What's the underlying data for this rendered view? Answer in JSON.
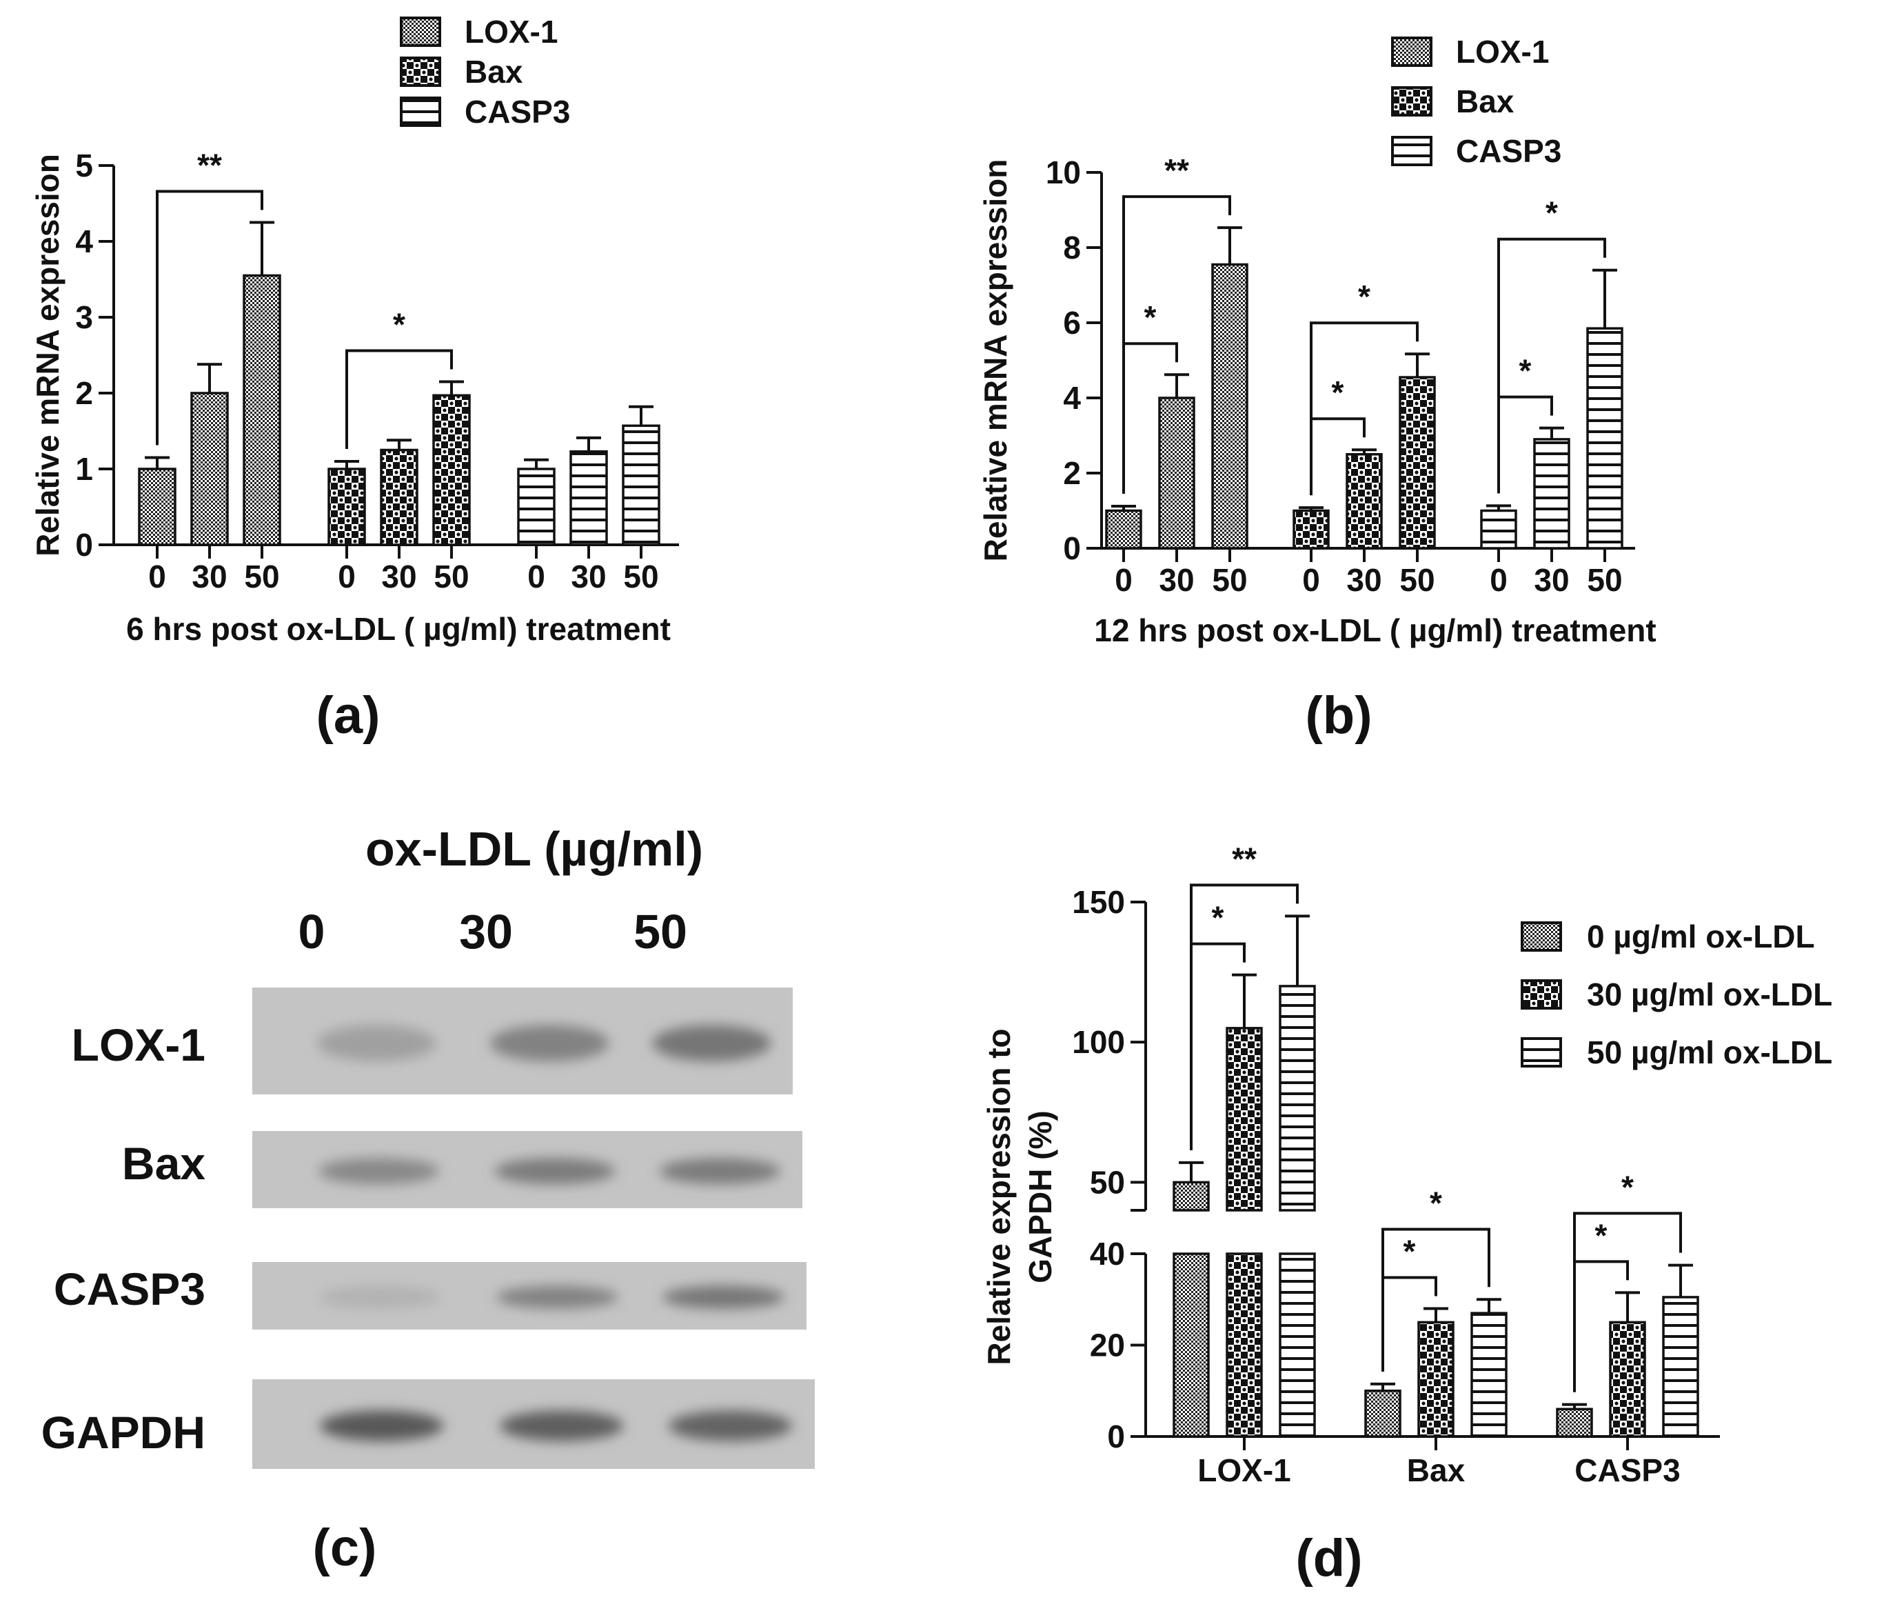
{
  "chart_data": [
    {
      "id": "a",
      "type": "bar",
      "panel_label": "(a)",
      "xlabel": "6 hrs post ox-LDL ( µg/ml) treatment",
      "ylabel": "Relative mRNA expression",
      "ylim": [
        0,
        5
      ],
      "yticks": [
        "0",
        "1",
        "2",
        "3",
        "4",
        "5"
      ],
      "dose_labels": [
        "0",
        "30",
        "50"
      ],
      "legend": [
        "LOX-1",
        "Bax",
        "CASP3"
      ],
      "series": [
        {
          "name": "LOX-1",
          "values": [
            1.0,
            2.0,
            3.55
          ],
          "errors": [
            0.15,
            0.38,
            0.7
          ]
        },
        {
          "name": "Bax",
          "values": [
            1.0,
            1.25,
            1.97
          ],
          "errors": [
            0.1,
            0.13,
            0.18
          ]
        },
        {
          "name": "CASP3",
          "values": [
            1.0,
            1.23,
            1.57
          ],
          "errors": [
            0.12,
            0.18,
            0.25
          ]
        }
      ],
      "significance": [
        {
          "series": "LOX-1",
          "from": "0",
          "to": "50",
          "label": "**"
        },
        {
          "series": "Bax",
          "from": "0",
          "to": "50",
          "label": "*"
        }
      ]
    },
    {
      "id": "b",
      "type": "bar",
      "panel_label": "(b)",
      "xlabel": "12 hrs post ox-LDL ( µg/ml) treatment",
      "ylabel": "Relative mRNA expression",
      "ylim": [
        0,
        10
      ],
      "yticks": [
        "0",
        "2",
        "4",
        "6",
        "8",
        "10"
      ],
      "dose_labels": [
        "0",
        "30",
        "50"
      ],
      "legend": [
        "LOX-1",
        "Bax",
        "CASP3"
      ],
      "series": [
        {
          "name": "LOX-1",
          "values": [
            1.0,
            4.0,
            7.55
          ],
          "errors": [
            0.12,
            0.62,
            0.98
          ]
        },
        {
          "name": "Bax",
          "values": [
            1.0,
            2.5,
            4.55
          ],
          "errors": [
            0.08,
            0.12,
            0.62
          ]
        },
        {
          "name": "CASP3",
          "values": [
            1.0,
            2.9,
            5.85
          ],
          "errors": [
            0.13,
            0.3,
            1.55
          ]
        }
      ],
      "significance": [
        {
          "series": "LOX-1",
          "from": "0",
          "to": "50",
          "label": "**"
        },
        {
          "series": "LOX-1",
          "from": "0",
          "to": "30",
          "label": "*"
        },
        {
          "series": "Bax",
          "from": "0",
          "to": "50",
          "label": "*"
        },
        {
          "series": "Bax",
          "from": "0",
          "to": "30",
          "label": "*"
        },
        {
          "series": "CASP3",
          "from": "0",
          "to": "50",
          "label": "*"
        },
        {
          "series": "CASP3",
          "from": "0",
          "to": "30",
          "label": "*"
        }
      ]
    },
    {
      "id": "d",
      "type": "bar",
      "panel_label": "(d)",
      "ylabel": "Relative expression to GAPDH (%)",
      "ylabel_lines": [
        "Relative expression to",
        "GAPDH (%)"
      ],
      "categories": [
        "LOX-1",
        "Bax",
        "CASP3"
      ],
      "y_axis_break": {
        "lower": [
          0,
          40
        ],
        "upper": [
          40,
          150
        ]
      },
      "yticks_lower": [
        "0",
        "20",
        "40"
      ],
      "yticks_upper": [
        "50",
        "100",
        "150"
      ],
      "legend": [
        "0 µg/ml ox-LDL",
        "30 µg/ml  ox-LDL",
        "50 µg/ml  ox-LDL"
      ],
      "series": [
        {
          "name": "0 µg/ml ox-LDL",
          "values": [
            50,
            10,
            6
          ],
          "errors": [
            7,
            1.5,
            1
          ]
        },
        {
          "name": "30 µg/ml ox-LDL",
          "values": [
            105,
            25,
            25
          ],
          "errors": [
            19,
            3,
            6.5
          ]
        },
        {
          "name": "50 µg/ml ox-LDL",
          "values": [
            120,
            27,
            30.5
          ],
          "errors": [
            25,
            3,
            7
          ]
        }
      ],
      "significance": [
        {
          "category": "LOX-1",
          "from": 0,
          "to": 2,
          "label": "**"
        },
        {
          "category": "LOX-1",
          "from": 0,
          "to": 1,
          "label": "*"
        },
        {
          "category": "Bax",
          "from": 0,
          "to": 2,
          "label": "*"
        },
        {
          "category": "Bax",
          "from": 0,
          "to": 1,
          "label": "*"
        },
        {
          "category": "CASP3",
          "from": 0,
          "to": 2,
          "label": "*"
        },
        {
          "category": "CASP3",
          "from": 0,
          "to": 1,
          "label": "*"
        }
      ]
    }
  ],
  "blot": {
    "panel_label": "(c)",
    "title": "ox-LDL (µg/ml)",
    "doses": [
      "0",
      "30",
      "50"
    ],
    "bands": [
      {
        "name": "LOX-1",
        "intensity": [
          0.25,
          0.5,
          0.6
        ]
      },
      {
        "name": "Bax",
        "intensity": [
          0.45,
          0.55,
          0.55
        ]
      },
      {
        "name": "CASP3",
        "intensity": [
          0.1,
          0.5,
          0.6
        ]
      },
      {
        "name": "GAPDH",
        "intensity": [
          0.85,
          0.8,
          0.75
        ]
      }
    ]
  }
}
